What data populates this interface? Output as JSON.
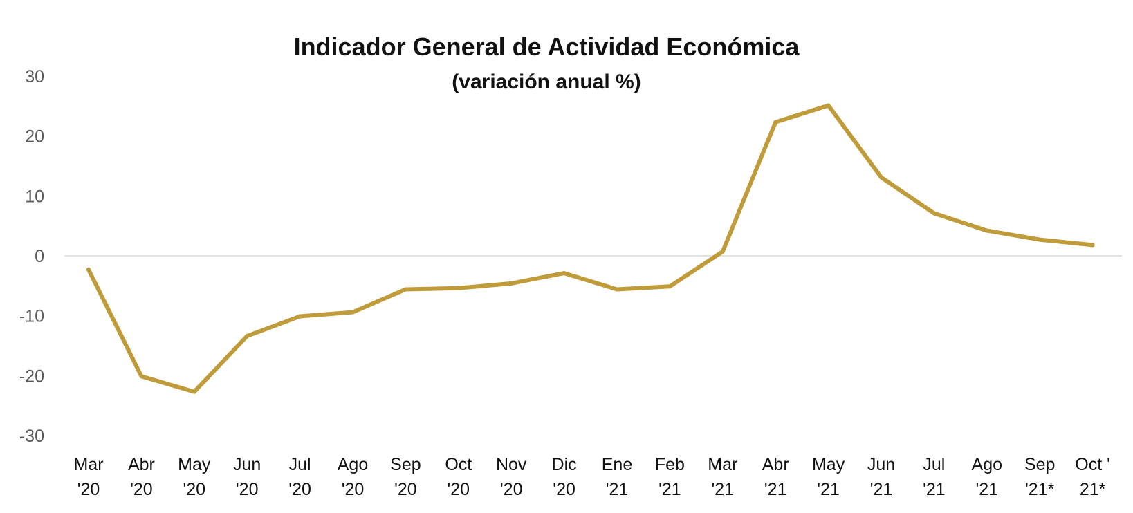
{
  "chart_data": {
    "type": "line",
    "title": "Indicador General de Actividad Económica",
    "subtitle": "(variación anual %)",
    "xlabel": "",
    "ylabel": "",
    "ylim": [
      -30,
      30
    ],
    "yticks": [
      "30",
      "20",
      "10",
      "0",
      "-10",
      "-20",
      "-30"
    ],
    "grid": false,
    "zero_line": true,
    "categories": [
      [
        "Mar",
        "'20"
      ],
      [
        "Abr",
        "'20"
      ],
      [
        "May",
        "'20"
      ],
      [
        "Jun",
        "'20"
      ],
      [
        "Jul",
        "'20"
      ],
      [
        "Ago",
        "'20"
      ],
      [
        "Sep",
        "'20"
      ],
      [
        "Oct",
        "'20"
      ],
      [
        "Nov",
        "'20"
      ],
      [
        "Dic",
        "'20"
      ],
      [
        "Ene",
        "'21"
      ],
      [
        "Feb",
        "'21"
      ],
      [
        "Mar",
        "'21"
      ],
      [
        "Abr",
        "'21"
      ],
      [
        "May",
        "'21"
      ],
      [
        "Jun",
        "'21"
      ],
      [
        "Jul",
        "'21"
      ],
      [
        "Ago",
        "'21"
      ],
      [
        "Sep",
        "'21*"
      ],
      [
        "Oct '",
        "21*"
      ]
    ],
    "series": [
      {
        "values": [
          -2.3,
          -20.1,
          -22.7,
          -13.4,
          -10.1,
          -9.4,
          -5.6,
          -5.4,
          -4.6,
          -2.9,
          -5.6,
          -5.1,
          0.7,
          22.3,
          25.1,
          13.1,
          7.1,
          4.2,
          2.7,
          1.8
        ],
        "color": "#bf9b3a"
      }
    ]
  }
}
